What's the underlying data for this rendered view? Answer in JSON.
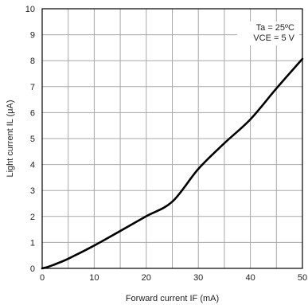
{
  "chart_data": {
    "type": "line",
    "xlabel": "Forward current IF (mA)",
    "ylabel": "Light current IL (μA)",
    "xlim": [
      0,
      50
    ],
    "ylim": [
      0,
      10
    ],
    "xticks": [
      0,
      10,
      20,
      30,
      40,
      50
    ],
    "yticks": [
      0,
      1,
      2,
      3,
      4,
      5,
      6,
      7,
      8,
      9,
      10
    ],
    "grid": true,
    "annotation": [
      "Ta = 25ºC",
      "VCE = 5 V"
    ],
    "annotation_position": "top-right",
    "series": [
      {
        "x": [
          0,
          1,
          2,
          3,
          4,
          5,
          6,
          8,
          10,
          12,
          15,
          20,
          25,
          30,
          35,
          40,
          45,
          50
        ],
        "values": [
          0,
          0.05,
          0.12,
          0.2,
          0.28,
          0.37,
          0.47,
          0.67,
          0.88,
          1.1,
          1.44,
          2.01,
          2.57,
          3.83,
          4.82,
          5.74,
          6.93,
          8.07
        ]
      }
    ]
  }
}
